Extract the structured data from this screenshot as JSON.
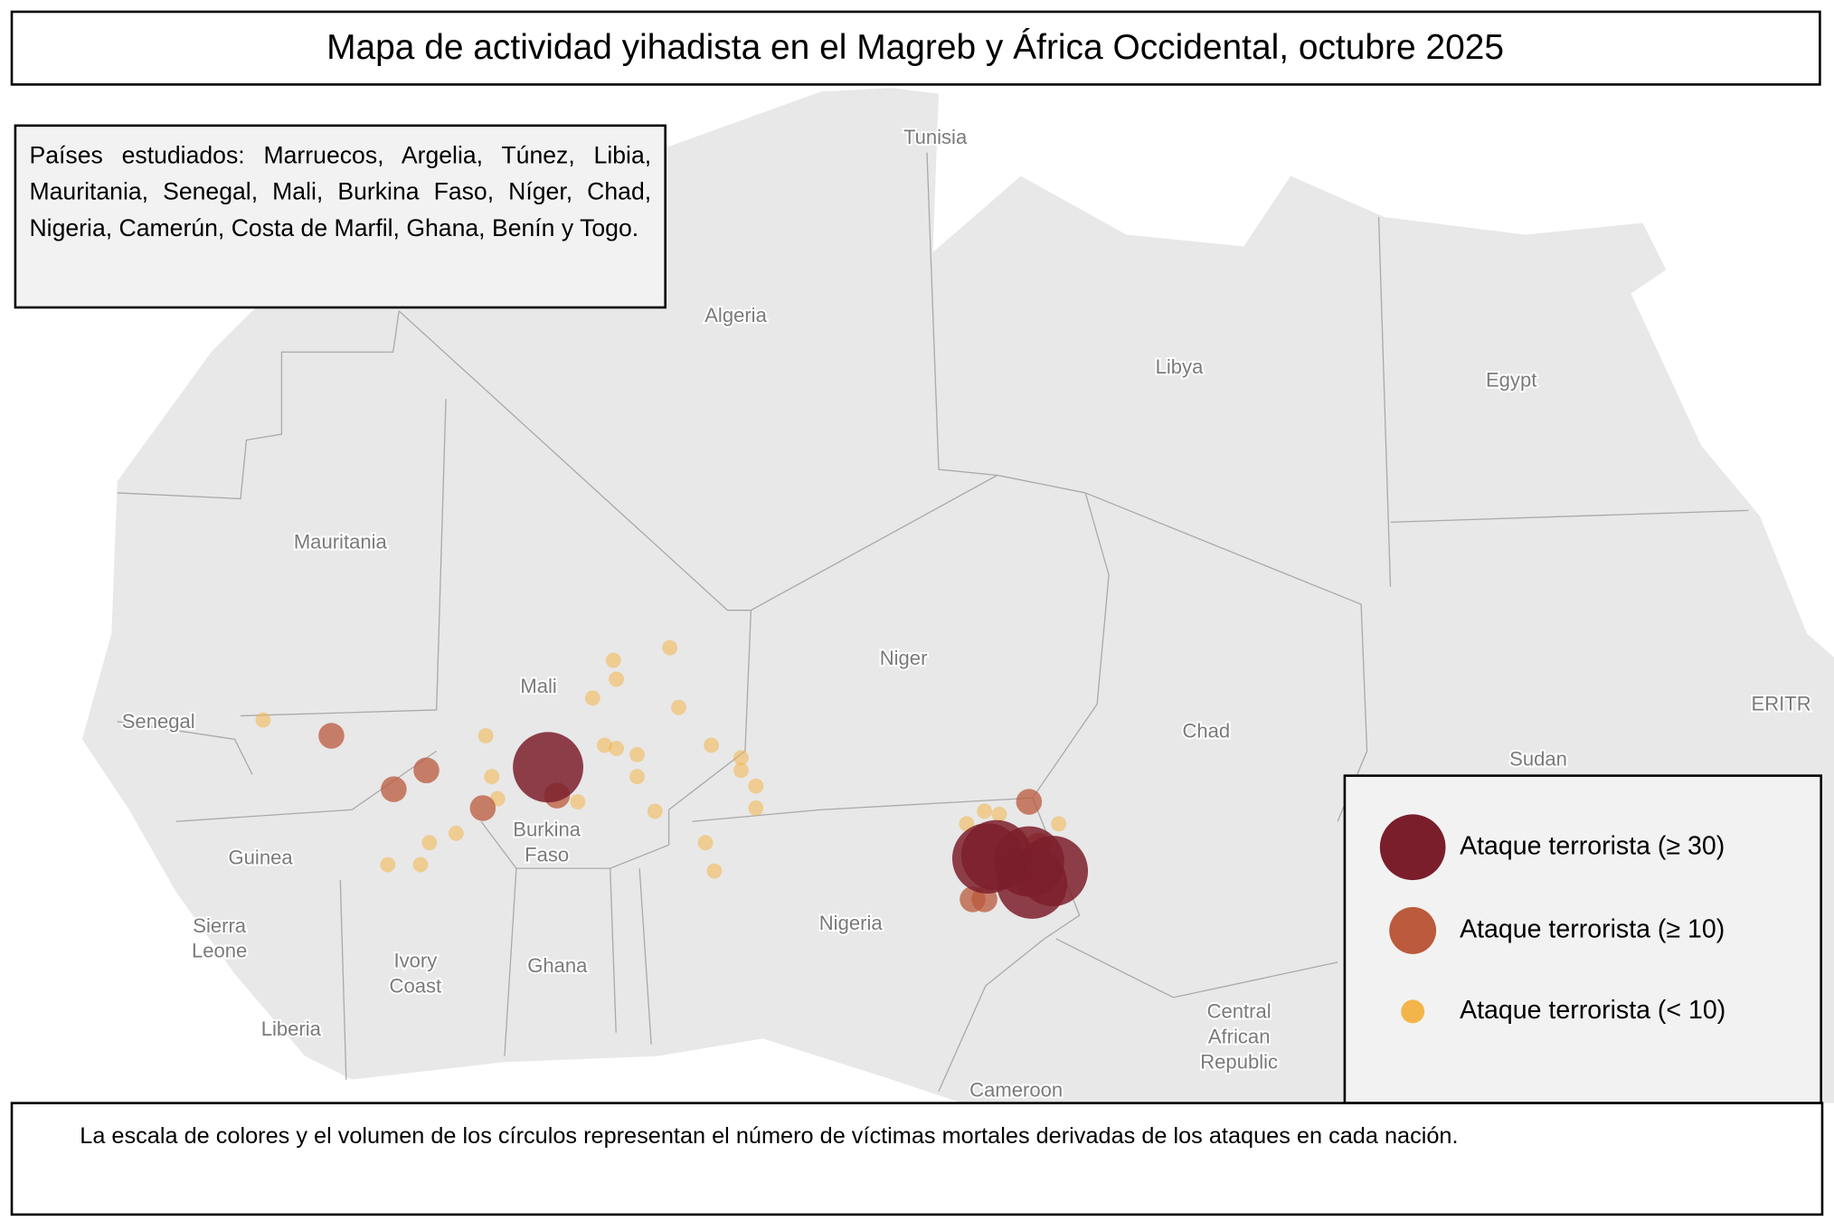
{
  "title": "Mapa de actividad yihadista en el Magreb y África Occidental, octubre 2025",
  "info_text": "Países estudiados: Marruecos, Argelia, Túnez, Libia, Mauritania, Senegal, Mali, Burkina Faso, Níger, Chad, Nigeria, Camerún, Costa de Marfil, Ghana, Benín y Togo.",
  "footnote": "La escala de colores y el volumen de los círculos representan el número de víctimas mortales derivadas de los ataques en cada nación.",
  "map_labels": [
    [
      "Tunisia"
    ],
    [
      "Algeria"
    ],
    [
      "Libya"
    ],
    [
      "Egypt"
    ],
    [
      "Mauritania"
    ],
    [
      "Mali"
    ],
    [
      "Niger"
    ],
    [
      "Chad"
    ],
    [
      "Sudan"
    ],
    [
      "Senegal"
    ],
    [
      "Burkina",
      "Faso"
    ],
    [
      "Guinea"
    ],
    [
      "Sierra",
      "Leone"
    ],
    [
      "Ivory",
      "Coast"
    ],
    [
      "Ghana"
    ],
    [
      "Nigeria"
    ],
    [
      "Liberia"
    ],
    [
      "Central",
      "African",
      "Republic"
    ],
    [
      "Cameroon"
    ],
    [
      "ERITR"
    ]
  ],
  "legend": [
    {
      "label": "Ataque terrorista (≥ 30)",
      "color": "#7b1e2b"
    },
    {
      "label": "Ataque terrorista (≥ 10)",
      "color": "#bb5a3c"
    },
    {
      "label": "Ataque terrorista (< 10)",
      "color": "#f3b54a"
    }
  ],
  "points": [
    {
      "lon": -3.0,
      "lat": 14.0,
      "class": 0
    },
    {
      "lon": 14.0,
      "lat": 10.7,
      "class": 0
    },
    {
      "lon": 13.3,
      "lat": 10.3,
      "class": 0
    },
    {
      "lon": 12.1,
      "lat": 11.2,
      "class": 0
    },
    {
      "lon": 13.2,
      "lat": 11.0,
      "class": 0
    },
    {
      "lon": 11.8,
      "lat": 11.1,
      "class": 0
    },
    {
      "lon": -10.3,
      "lat": 15.0,
      "class": 1
    },
    {
      "lon": -7.1,
      "lat": 13.9,
      "class": 1
    },
    {
      "lon": -8.2,
      "lat": 13.3,
      "class": 1
    },
    {
      "lon": -5.2,
      "lat": 12.7,
      "class": 1
    },
    {
      "lon": -2.7,
      "lat": 13.1,
      "class": 1
    },
    {
      "lon": 13.2,
      "lat": 12.9,
      "class": 1
    },
    {
      "lon": 11.3,
      "lat": 9.8,
      "class": 1
    },
    {
      "lon": 11.7,
      "lat": 9.8,
      "class": 1
    },
    {
      "lon": 13.5,
      "lat": 11.5,
      "class": 1
    },
    {
      "lon": 13.2,
      "lat": 10.3,
      "class": 1
    },
    {
      "lon": -12.6,
      "lat": 15.5,
      "class": 2
    },
    {
      "lon": -0.8,
      "lat": 17.4,
      "class": 2
    },
    {
      "lon": -0.7,
      "lat": 16.8,
      "class": 2
    },
    {
      "lon": 1.1,
      "lat": 17.8,
      "class": 2
    },
    {
      "lon": -1.5,
      "lat": 16.2,
      "class": 2
    },
    {
      "lon": 1.4,
      "lat": 15.9,
      "class": 2
    },
    {
      "lon": -5.1,
      "lat": 15.0,
      "class": 2
    },
    {
      "lon": 0.0,
      "lat": 14.4,
      "class": 2
    },
    {
      "lon": -1.1,
      "lat": 14.7,
      "class": 2
    },
    {
      "lon": -0.7,
      "lat": 14.6,
      "class": 2
    },
    {
      "lon": 0.0,
      "lat": 13.7,
      "class": 2
    },
    {
      "lon": -2.0,
      "lat": 12.9,
      "class": 2
    },
    {
      "lon": 0.6,
      "lat": 12.6,
      "class": 2
    },
    {
      "lon": -8.4,
      "lat": 10.9,
      "class": 2
    },
    {
      "lon": -7.3,
      "lat": 10.9,
      "class": 2
    },
    {
      "lon": -4.9,
      "lat": 13.7,
      "class": 2
    },
    {
      "lon": -6.1,
      "lat": 11.9,
      "class": 2
    },
    {
      "lon": -7.0,
      "lat": 11.6,
      "class": 2
    },
    {
      "lon": 2.5,
      "lat": 14.7,
      "class": 2
    },
    {
      "lon": 3.5,
      "lat": 14.3,
      "class": 2
    },
    {
      "lon": 3.5,
      "lat": 13.9,
      "class": 2
    },
    {
      "lon": 4.0,
      "lat": 13.4,
      "class": 2
    },
    {
      "lon": 4.0,
      "lat": 12.7,
      "class": 2
    },
    {
      "lon": 2.3,
      "lat": 11.6,
      "class": 2
    },
    {
      "lon": 2.6,
      "lat": 10.7,
      "class": 2
    },
    {
      "lon": 11.1,
      "lat": 12.2,
      "class": 2
    },
    {
      "lon": 12.2,
      "lat": 12.5,
      "class": 2
    },
    {
      "lon": 11.7,
      "lat": 12.6,
      "class": 2
    },
    {
      "lon": 12.9,
      "lat": 11.8,
      "class": 2
    },
    {
      "lon": 13.6,
      "lat": 11.7,
      "class": 2
    },
    {
      "lon": 14.2,
      "lat": 12.2,
      "class": 2
    },
    {
      "lon": -4.7,
      "lat": 13.0,
      "class": 2
    }
  ]
}
